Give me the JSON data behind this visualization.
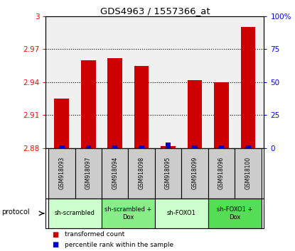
{
  "title": "GDS4963 / 1557366_at",
  "samples": [
    "GSM918093",
    "GSM918097",
    "GSM918094",
    "GSM918098",
    "GSM918095",
    "GSM918099",
    "GSM918096",
    "GSM918100"
  ],
  "red_values": [
    2.925,
    2.96,
    2.962,
    2.955,
    2.882,
    2.942,
    2.94,
    2.99
  ],
  "blue_percentiles": [
    2,
    2,
    2,
    2,
    4,
    2,
    2,
    2
  ],
  "ylim_left": [
    2.88,
    3.0
  ],
  "ylim_right": [
    0,
    100
  ],
  "yticks_left": [
    2.88,
    2.91,
    2.94,
    2.97,
    3.0
  ],
  "yticks_right": [
    0,
    25,
    50,
    75,
    100
  ],
  "ytick_labels_left": [
    "2.88",
    "2.91",
    "2.94",
    "2.97",
    "3"
  ],
  "ytick_labels_right": [
    "0",
    "25",
    "50",
    "75",
    "100%"
  ],
  "groups": [
    {
      "label": "sh-scrambled",
      "start": 0,
      "end": 2,
      "color": "#ccffcc"
    },
    {
      "label": "sh-scrambled +\nDox",
      "start": 2,
      "end": 4,
      "color": "#88ee88"
    },
    {
      "label": "sh-FOXO1",
      "start": 4,
      "end": 6,
      "color": "#ccffcc"
    },
    {
      "label": "sh-FOXO1 +\nDox",
      "start": 6,
      "end": 8,
      "color": "#55dd55"
    }
  ],
  "bar_width": 0.55,
  "blue_bar_width": 0.2,
  "bar_color_red": "#cc0000",
  "bar_color_blue": "#0000cc",
  "background_color": "#ffffff",
  "sample_box_color": "#cccccc",
  "plot_bg_color": "#f0f0f0",
  "legend_red": "transformed count",
  "legend_blue": "percentile rank within the sample"
}
